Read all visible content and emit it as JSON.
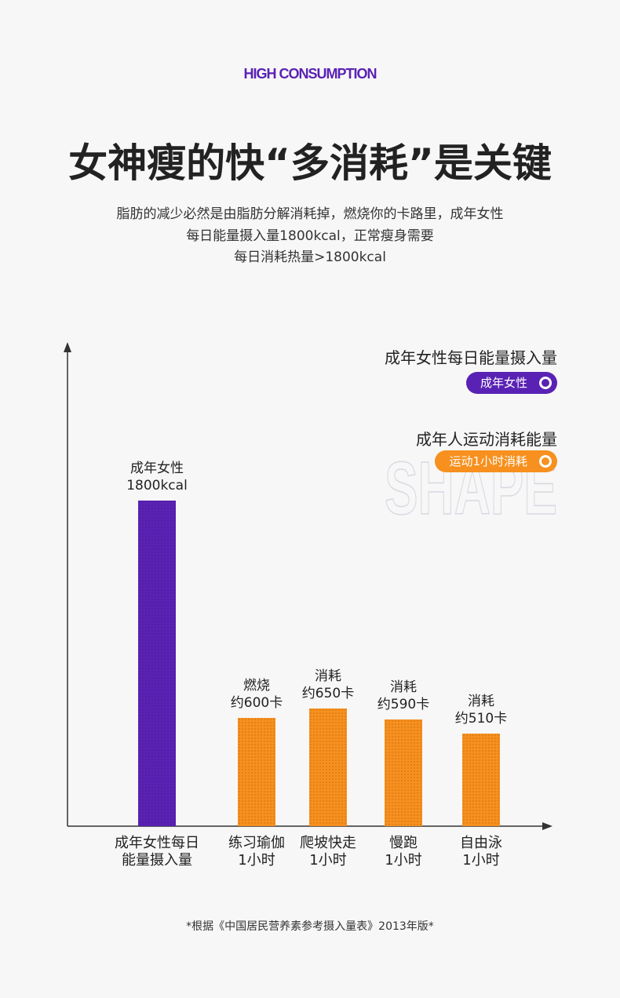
{
  "header": "HIGH CONSUMPTION",
  "title": "女神瘦的快“多消耗”是关键",
  "subtitle": [
    "脂肪的减少必然是由脂肪分解消耗掉，燃烧你的卡路里，成年女性",
    "每日能量摄入量1800kcal，正常瘦身需要",
    "每日消耗热量>1800kcal"
  ],
  "watermark": "SHAPE",
  "chart_data": {
    "type": "bar",
    "categories": [
      "成年女性每日\n能量摄入量",
      "练习瑜伽\n1小时",
      "爬坡快走\n1小时",
      "慢跑\n1小时",
      "自由泳\n1小时"
    ],
    "series": [
      {
        "name": "成年女性",
        "legend_title": "成年女性每日能量摄入量",
        "color": "#5a22b4",
        "values": [
          1800,
          null,
          null,
          null,
          null
        ],
        "value_labels": [
          "成年女性\n1800kcal",
          null,
          null,
          null,
          null
        ]
      },
      {
        "name": "运动1小时消耗",
        "legend_title": "成年人运动消耗能量",
        "color": "#f7901e",
        "values": [
          null,
          600,
          650,
          590,
          510
        ],
        "value_labels": [
          null,
          "燃烧\n约600卡",
          "消耗\n约650卡",
          "消耗\n约590卡",
          "消耗\n约510卡"
        ]
      }
    ]
  },
  "footnote": "*根据《中国居民营养素参考摄入量表》2013年版*"
}
